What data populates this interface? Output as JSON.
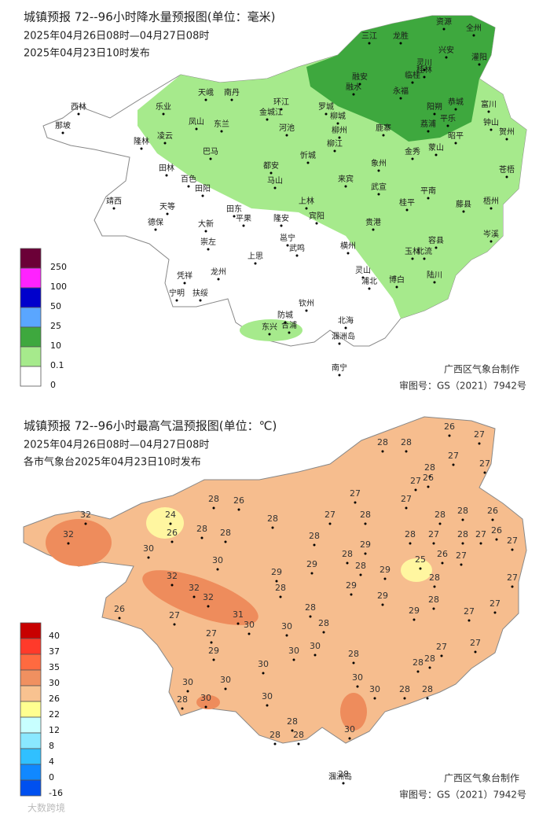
{
  "precip_map": {
    "title": "城镇预报 72--96小时降水量预报图(单位：毫米)",
    "period": "2025年04月26日08时—04月27日08时",
    "issued": "2025年04月23日10时发布",
    "legend": [
      250,
      100,
      50,
      25,
      10,
      0.1,
      0
    ],
    "places": [
      "三江",
      "龙胜",
      "资源",
      "全州",
      "兴安",
      "灌阳",
      "灵川",
      "临桂",
      "桂林",
      "融安",
      "融水",
      "永福",
      "阳朔",
      "恭城",
      "富川",
      "荔浦",
      "平乐",
      "钟山",
      "贺州",
      "昭平",
      "天峨",
      "南丹",
      "乐业",
      "凤山",
      "东兰",
      "环江",
      "金城江",
      "罗城",
      "河池",
      "柳城",
      "鹿寨",
      "柳州",
      "柳江",
      "凌云",
      "巴马",
      "忻城",
      "象州",
      "金秀",
      "蒙山",
      "苍梧",
      "藤县",
      "梧州",
      "平南",
      "桂平",
      "武宣",
      "来宾",
      "都安",
      "马山",
      "上林",
      "宾阳",
      "贵港",
      "岑溪",
      "容县",
      "北流",
      "玉林",
      "陆川",
      "博白",
      "横州",
      "灵山",
      "浦北",
      "钦州",
      "防城",
      "东兴",
      "合浦",
      "北海",
      "涠洲岛",
      "南宁",
      "邕宁",
      "武鸣",
      "隆安",
      "平果",
      "田东",
      "田阳",
      "百色",
      "田林",
      "隆林",
      "西林",
      "那坡",
      "靖西",
      "德保",
      "天等",
      "大新",
      "崇左",
      "龙州",
      "凭祥",
      "宁明",
      "扶绥",
      "上思"
    ],
    "producer": "广西区气象台制作",
    "review_number": "审图号：GS（2021）7942号"
  },
  "temp_map": {
    "title": "城镇预报 72--96小时最高气温预报图(单位：℃)",
    "period": "2025年04月26日08时—04月27日08时",
    "issued": "各市气象台2025年04月23日10时发布",
    "legend": [
      40,
      37,
      35,
      30,
      26,
      22,
      12,
      8,
      4,
      0,
      -16
    ],
    "temps": [
      26,
      27,
      28,
      28,
      27,
      27,
      28,
      26,
      27,
      27,
      27,
      28,
      26,
      24,
      32,
      28,
      27,
      28,
      28,
      28,
      26,
      32,
      26,
      28,
      28,
      28,
      27,
      28,
      28,
      27,
      26,
      27,
      29,
      30,
      30,
      28,
      29,
      28,
      25,
      26,
      27,
      29,
      32,
      32,
      32,
      29,
      28,
      29,
      28,
      27,
      29,
      28,
      26,
      27,
      28,
      27,
      27,
      31,
      30,
      29,
      30,
      28,
      27,
      29,
      30,
      30,
      28,
      27,
      27,
      28,
      28,
      30,
      30,
      30,
      30,
      28,
      28,
      30,
      28,
      30,
      30,
      28,
      28,
      28,
      30,
      28
    ],
    "island": "涠洲岛",
    "producer": "广西区气象台制作",
    "review_number": "审图号：GS（2021）7942号"
  },
  "watermark": "大数跨境"
}
